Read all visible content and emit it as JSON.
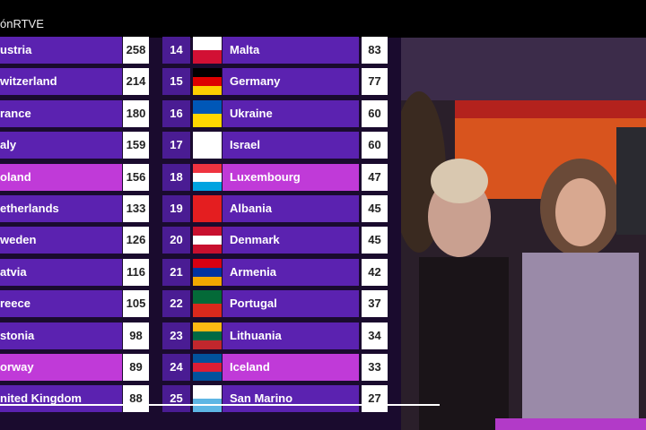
{
  "header": {
    "channel": "ónRTVE"
  },
  "left_table": {
    "rows": [
      {
        "country": "ustria",
        "points": "258"
      },
      {
        "country": "witzerland",
        "points": "214"
      },
      {
        "country": "rance",
        "points": "180"
      },
      {
        "country": "aly",
        "points": "159"
      },
      {
        "country": "oland",
        "points": "156",
        "highlighted": true
      },
      {
        "country": "etherlands",
        "points": "133"
      },
      {
        "country": "weden",
        "points": "126"
      },
      {
        "country": "atvia",
        "points": "116"
      },
      {
        "country": "reece",
        "points": "105"
      },
      {
        "country": "stonia",
        "points": "98"
      },
      {
        "country": "orway",
        "points": "89",
        "highlighted": true
      },
      {
        "country": "nited Kingdom",
        "points": "88"
      }
    ]
  },
  "right_table": {
    "rows": [
      {
        "rank": "14",
        "country": "Malta",
        "points": "83"
      },
      {
        "rank": "15",
        "country": "Germany",
        "points": "77"
      },
      {
        "rank": "16",
        "country": "Ukraine",
        "points": "60"
      },
      {
        "rank": "17",
        "country": "Israel",
        "points": "60"
      },
      {
        "rank": "18",
        "country": "Luxembourg",
        "points": "47",
        "highlighted": true
      },
      {
        "rank": "19",
        "country": "Albania",
        "points": "45"
      },
      {
        "rank": "20",
        "country": "Denmark",
        "points": "45"
      },
      {
        "rank": "21",
        "country": "Armenia",
        "points": "42"
      },
      {
        "rank": "22",
        "country": "Portugal",
        "points": "37"
      },
      {
        "rank": "23",
        "country": "Lithuania",
        "points": "34"
      },
      {
        "rank": "24",
        "country": "Iceland",
        "points": "33",
        "highlighted": true
      },
      {
        "rank": "25",
        "country": "San Marino",
        "points": "27"
      }
    ]
  }
}
